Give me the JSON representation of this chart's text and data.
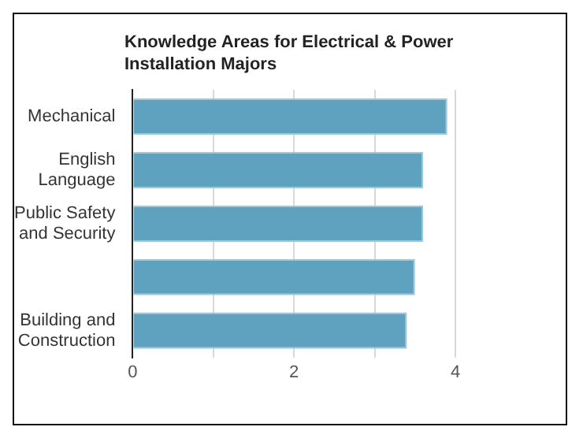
{
  "chart_data": {
    "type": "bar",
    "orientation": "horizontal",
    "title": "Knowledge Areas for Electrical & Power Installation Majors",
    "categories": [
      "Mechanical",
      "English Language",
      "Public Safety and Security",
      null,
      "Building and Construction"
    ],
    "values": [
      3.9,
      3.6,
      3.6,
      3.5,
      3.4
    ],
    "color": "#5fa2c0",
    "xlim": [
      0,
      4
    ],
    "xticks": [
      0,
      {
        "value": 1,
        "label": null
      },
      2,
      {
        "value": 3,
        "label": null
      },
      4
    ],
    "grid": "x",
    "legend": false
  }
}
